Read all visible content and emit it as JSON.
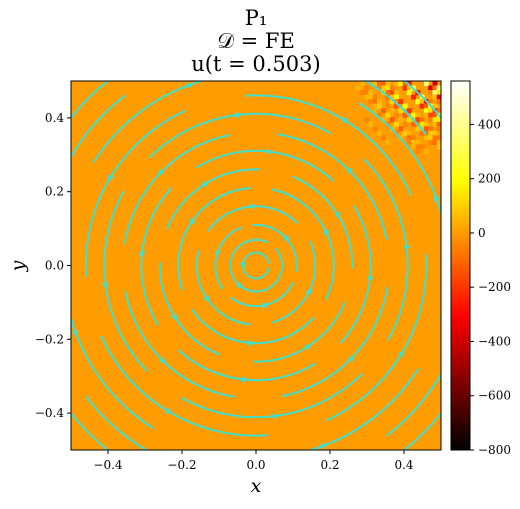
{
  "chart_data": {
    "type": "heatmap",
    "title_lines": [
      "P₁",
      "𝒟 = FE",
      "u(t = 0.503)"
    ],
    "xlabel": "x",
    "ylabel": "y",
    "xlim": [
      -0.5,
      0.5
    ],
    "ylim": [
      -0.5,
      0.5
    ],
    "x_ticks": [
      -0.4,
      -0.2,
      0.0,
      0.2,
      0.4
    ],
    "x_tick_labels": [
      "−0.4",
      "−0.2",
      "0.0",
      "0.2",
      "0.4"
    ],
    "y_ticks": [
      -0.4,
      -0.2,
      0.0,
      0.2,
      0.4
    ],
    "y_tick_labels": [
      "−0.4",
      "−0.2",
      "0.0",
      "0.2",
      "0.4"
    ],
    "colorbar": {
      "range": [
        -800,
        560
      ],
      "ticks": [
        400,
        200,
        0,
        -200,
        -400,
        -600,
        -800
      ],
      "tick_labels": [
        "400",
        "200",
        "0",
        "−200",
        "−400",
        "−600",
        "−800"
      ],
      "colormap": "hot"
    },
    "field": {
      "background_value": 0,
      "oscillation_region": "top-right corner",
      "oscillation_peak_value": 550
    },
    "streamlines": {
      "color": "#3fe0d0",
      "pattern": "concentric circles about (0, 0)",
      "radii": [
        0.035,
        0.07,
        0.11,
        0.16,
        0.21,
        0.26,
        0.31,
        0.36,
        0.41,
        0.46,
        0.52,
        0.58,
        0.64
      ]
    },
    "grid": false
  }
}
